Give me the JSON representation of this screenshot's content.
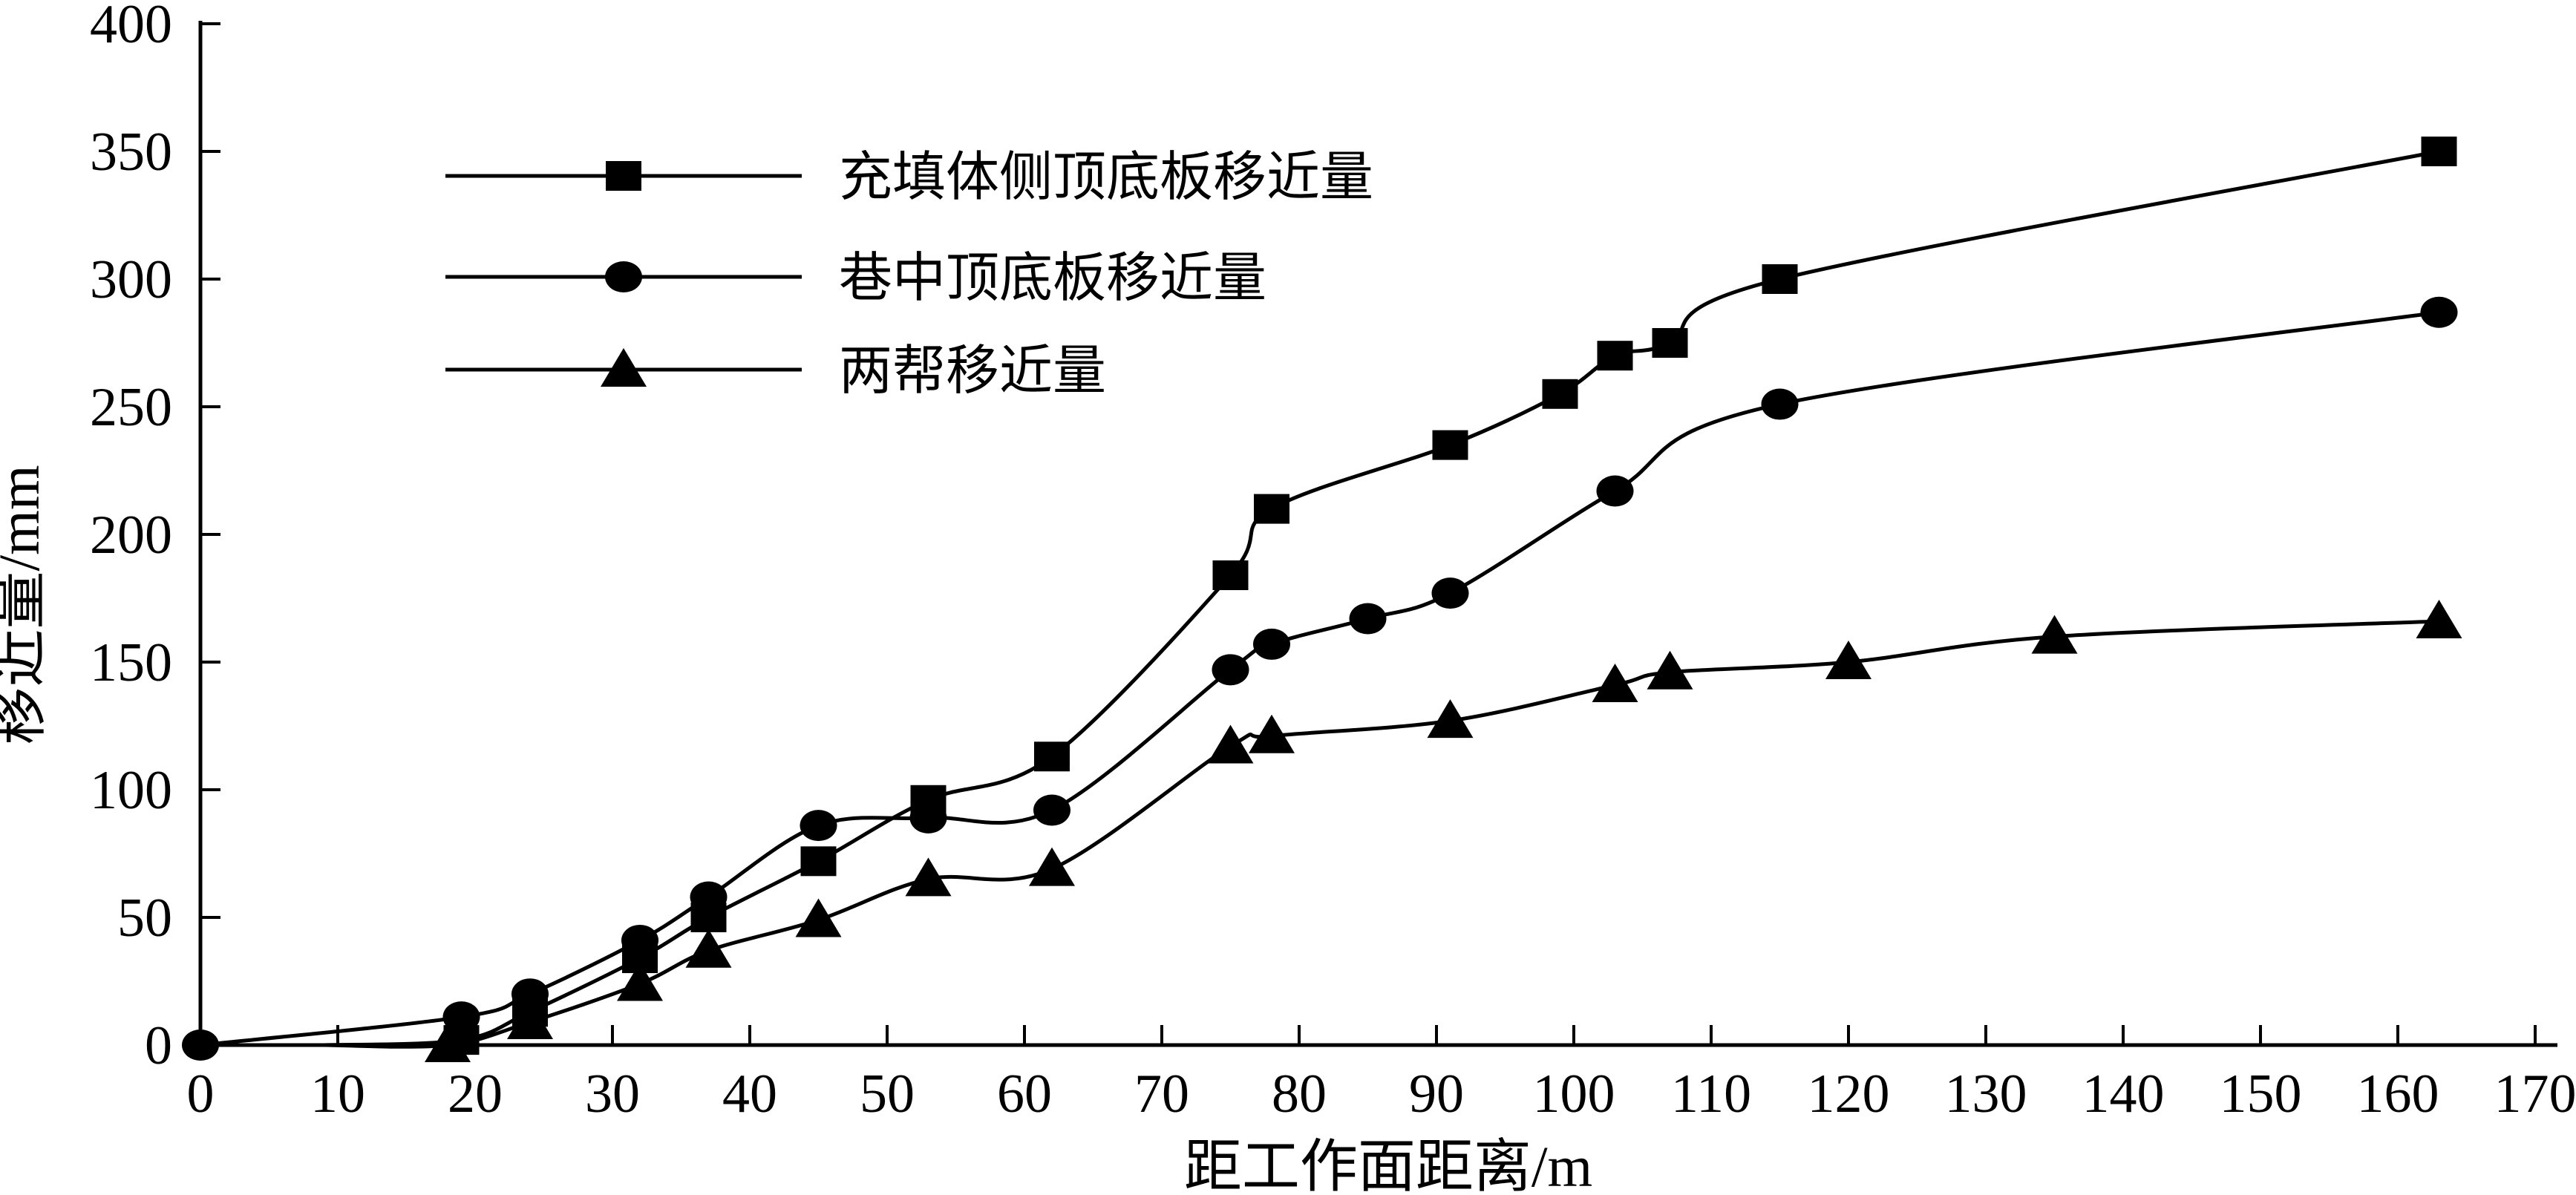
{
  "figure": {
    "background_color": "#ffffff",
    "ink_color": "#000000"
  },
  "chart_data": {
    "type": "line",
    "title": "",
    "xlabel": "距工作面距离/m",
    "ylabel": "移近量/mm",
    "xlim": [
      0,
      170
    ],
    "ylim": [
      0,
      400
    ],
    "xticks": [
      0,
      10,
      20,
      30,
      40,
      50,
      60,
      70,
      80,
      90,
      100,
      110,
      120,
      130,
      140,
      150,
      160,
      170
    ],
    "yticks": [
      0,
      50,
      100,
      150,
      200,
      250,
      300,
      350,
      400
    ],
    "grid": false,
    "legend_position": "upper-left-inside",
    "series": [
      {
        "name": "充填体侧顶底板移近量",
        "marker": "square",
        "color": "#000000",
        "lead_in": [
          9,
          0
        ],
        "points": [
          [
            19,
            2
          ],
          [
            24,
            13
          ],
          [
            32,
            34
          ],
          [
            37,
            50
          ],
          [
            45,
            72
          ],
          [
            53,
            96
          ],
          [
            62,
            113
          ],
          [
            75,
            184
          ],
          [
            78,
            210
          ],
          [
            91,
            235
          ],
          [
            99,
            255
          ],
          [
            103,
            270
          ],
          [
            107,
            275
          ],
          [
            115,
            300
          ],
          [
            163,
            350
          ]
        ]
      },
      {
        "name": "巷中顶底板移近量",
        "marker": "circle",
        "color": "#000000",
        "points": [
          [
            0,
            0
          ],
          [
            19,
            11
          ],
          [
            24,
            20
          ],
          [
            32,
            41
          ],
          [
            37,
            58
          ],
          [
            45,
            86
          ],
          [
            53,
            89
          ],
          [
            62,
            92
          ],
          [
            75,
            147
          ],
          [
            78,
            157
          ],
          [
            85,
            167
          ],
          [
            91,
            177
          ],
          [
            103,
            217
          ],
          [
            115,
            251
          ],
          [
            163,
            287
          ]
        ]
      },
      {
        "name": "两帮移近量",
        "marker": "triangle",
        "color": "#000000",
        "lead_in": [
          9,
          0
        ],
        "points": [
          [
            18,
            0
          ],
          [
            24,
            9
          ],
          [
            32,
            24
          ],
          [
            37,
            37
          ],
          [
            45,
            49
          ],
          [
            53,
            65
          ],
          [
            62,
            69
          ],
          [
            75,
            117
          ],
          [
            78,
            121
          ],
          [
            91,
            127
          ],
          [
            103,
            141
          ],
          [
            107,
            146
          ],
          [
            120,
            150
          ],
          [
            135,
            160
          ],
          [
            163,
            166
          ]
        ]
      }
    ]
  }
}
